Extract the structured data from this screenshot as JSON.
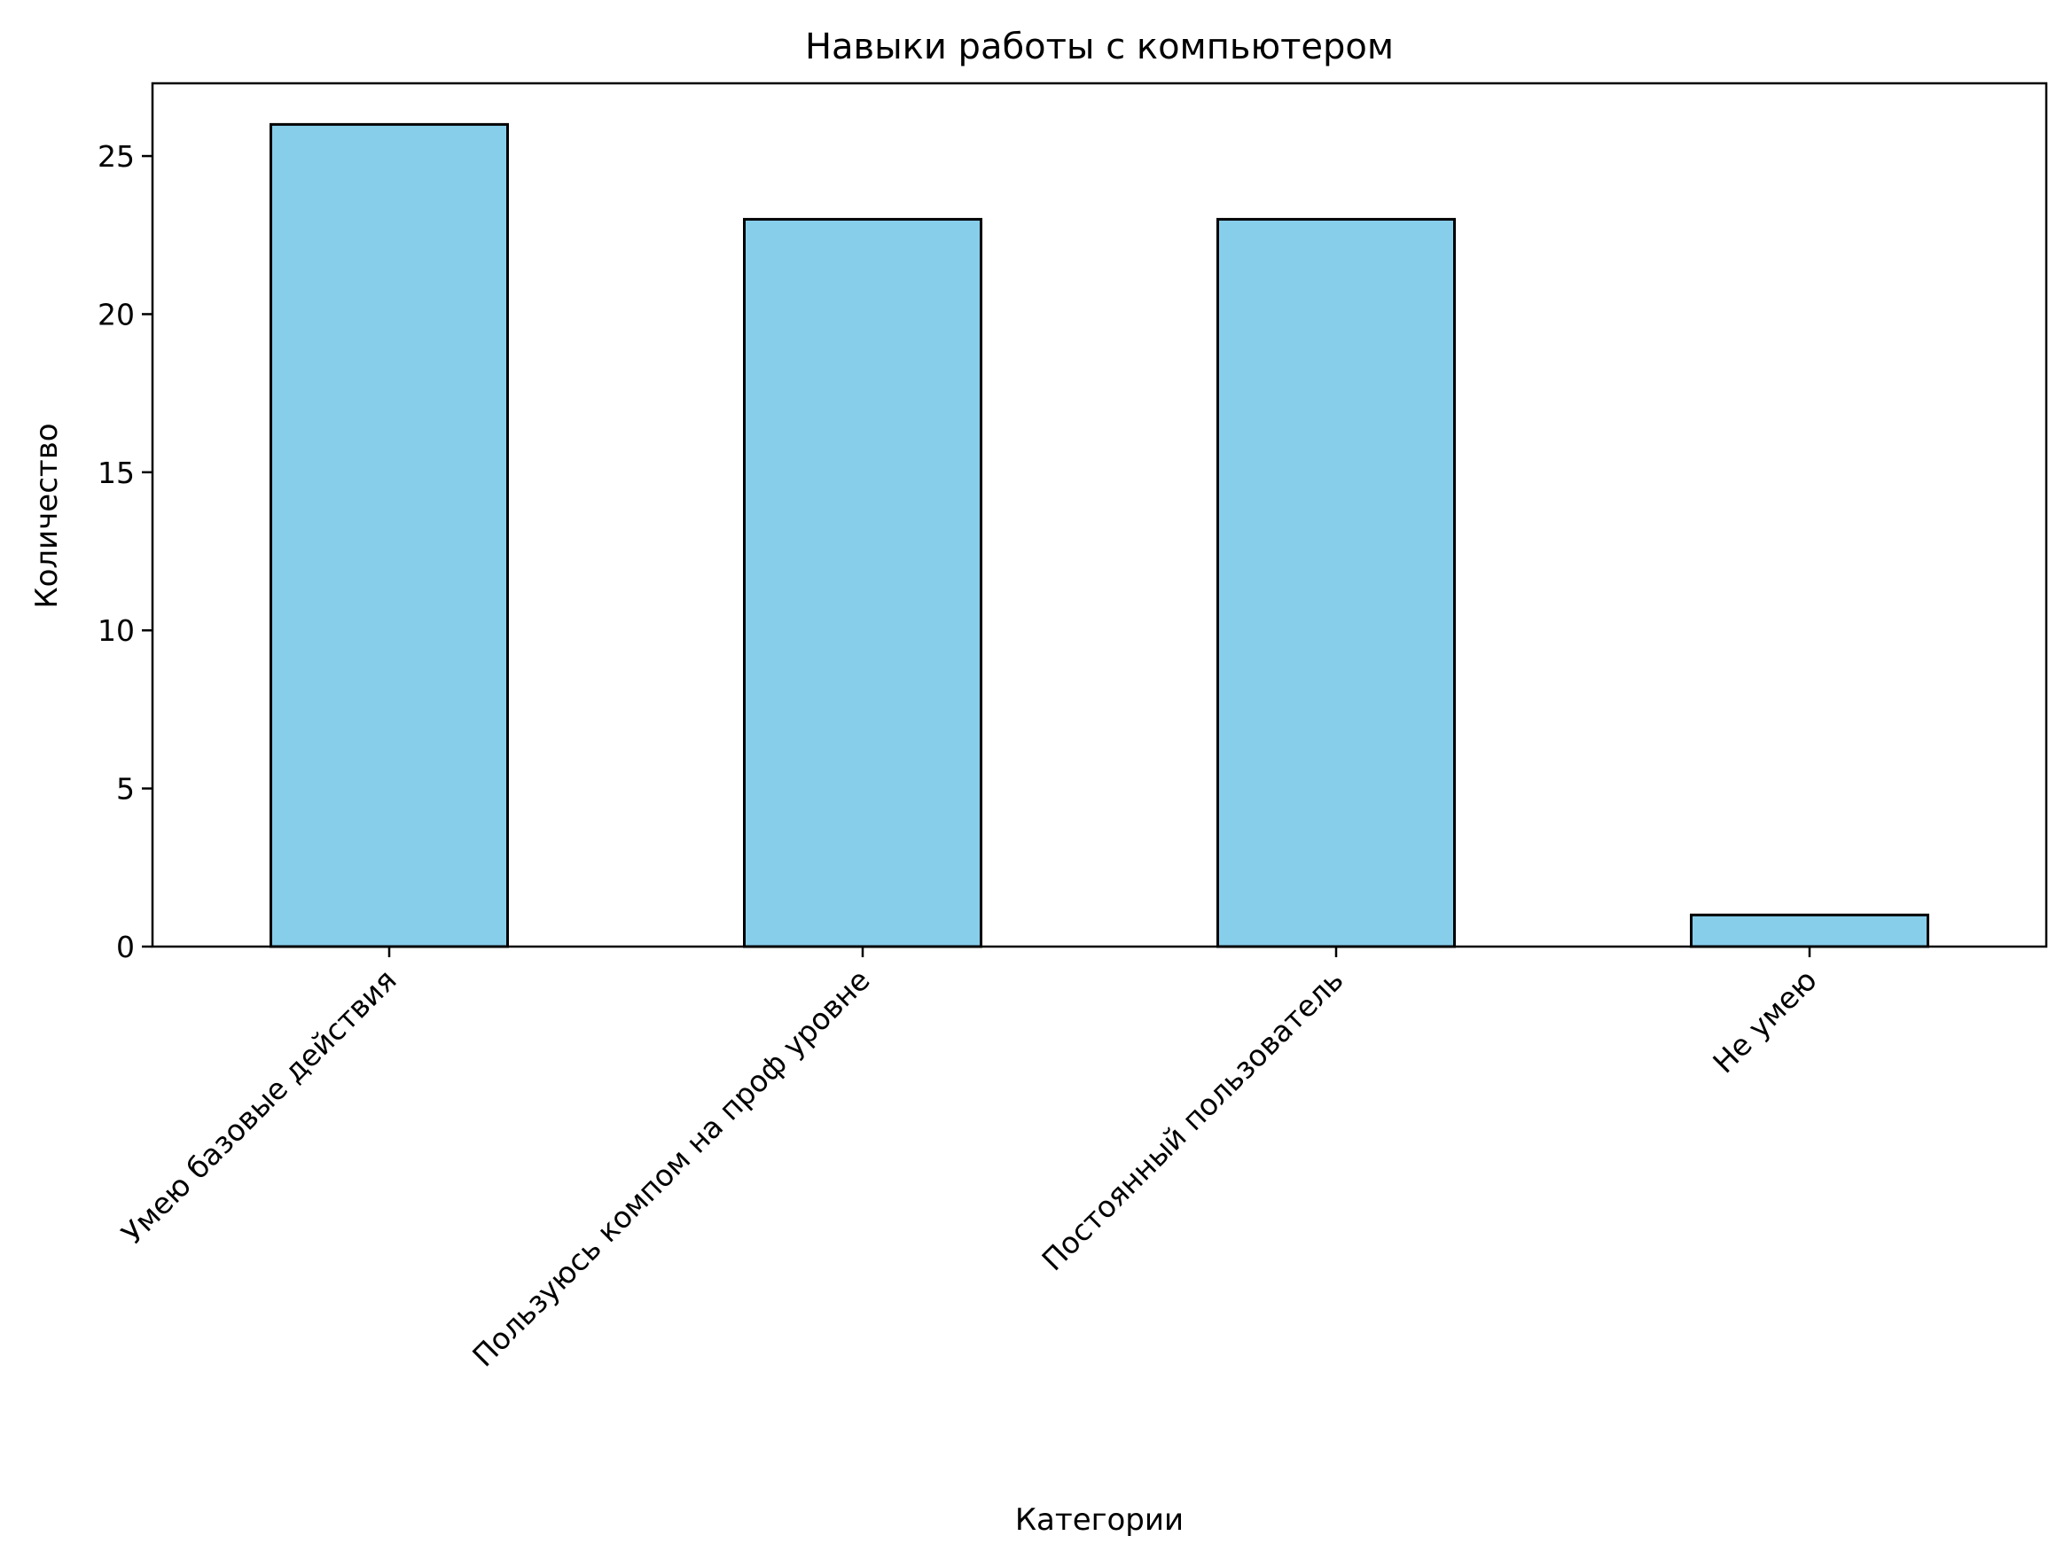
{
  "chart_data": {
    "type": "bar",
    "title": "Навыки работы с компьютером",
    "xlabel": "Категории",
    "ylabel": "Количество",
    "categories": [
      "Умею базовые действия",
      "Пользуюсь компом на проф уровне",
      "Постоянный пользователь",
      "Не умею"
    ],
    "values": [
      26,
      23,
      23,
      1
    ],
    "ylim": [
      0,
      27.3
    ],
    "yticks": [
      0,
      5,
      10,
      15,
      20,
      25
    ],
    "grid": false,
    "legend": "none",
    "bar_color": "#87CEEB",
    "bar_edge_color": "#000000",
    "x_tick_rotation_deg": 45
  }
}
